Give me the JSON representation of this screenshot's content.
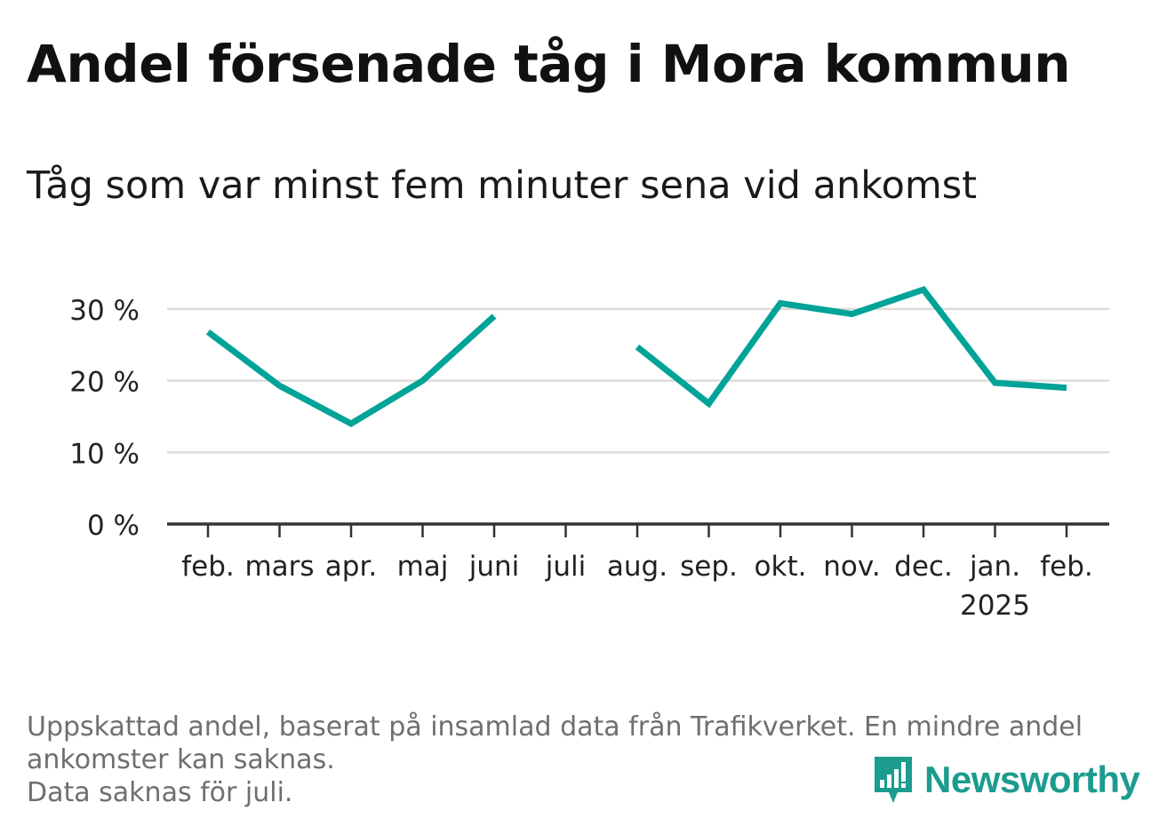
{
  "title": "Andel försenade tåg i Mora kommun",
  "subtitle": "Tåg som var minst fem minuter sena vid ankomst",
  "footnote": {
    "line1": "Uppskattad andel, baserat på insamlad data från Trafikverket. En mindre andel",
    "line2": "ankomster kan saknas.",
    "line3": "Data saknas för juli."
  },
  "brand": {
    "name": "Newsworthy",
    "icon": "newsworthy-logo-icon",
    "color": "#1b9c8e"
  },
  "chart_data": {
    "type": "line",
    "categories": [
      "feb.",
      "mars",
      "apr.",
      "maj",
      "juni",
      "juli",
      "aug.",
      "sep.",
      "okt.",
      "nov.",
      "dec.",
      "jan.",
      "feb."
    ],
    "year_label": {
      "text": "2025",
      "under_category_index": 11
    },
    "series": [
      {
        "values": [
          26.8,
          19.3,
          14.0,
          20.0,
          29.0,
          null,
          24.7,
          16.8,
          30.8,
          29.3,
          32.7,
          19.7,
          19.0
        ],
        "color": "#00a397"
      }
    ],
    "yticks": [
      0,
      10,
      20,
      30
    ],
    "ytick_labels": [
      "0 %",
      "10 %",
      "20 %",
      "30 %"
    ],
    "ylim": [
      0,
      34
    ],
    "grid": true,
    "colors": {
      "line": "#00a397",
      "grid": "#dcdcdc",
      "axis": "#333333"
    }
  }
}
